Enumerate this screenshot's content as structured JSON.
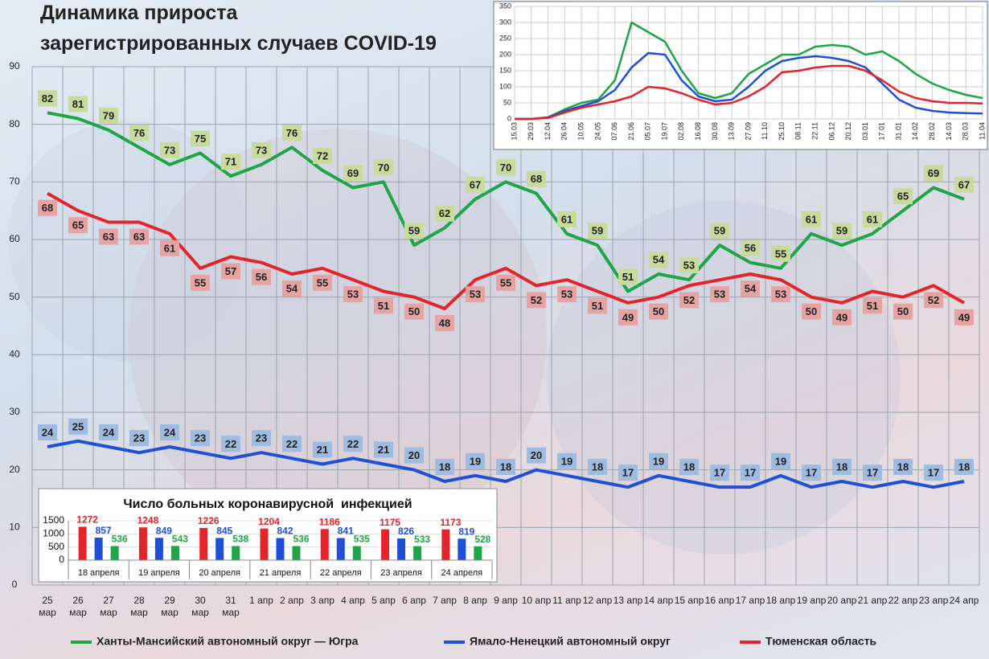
{
  "chart_data": [
    {
      "type": "line",
      "title": [
        "Динамика прироста",
        "зарегистрированных случаев COVID-19"
      ],
      "categories": [
        "25 мар",
        "26 мар",
        "27 мар",
        "28 мар",
        "29 мар",
        "30 мар",
        "31 мар",
        "1 апр",
        "2 апр",
        "3 апр",
        "4 апр",
        "5 апр",
        "6 апр",
        "7 апр",
        "8 апр",
        "9 апр",
        "10 апр",
        "11 апр",
        "12 апр",
        "13 апр",
        "14 апр",
        "15 апр",
        "16 апр",
        "17 апр",
        "18 апр",
        "19 апр",
        "20 апр",
        "21 апр",
        "22 апр",
        "23 апр",
        "24 апр"
      ],
      "series": [
        {
          "name": "Ханты-Мансийский автономный округ — Югра",
          "color": "#1fa547",
          "label_color": "#c7dc9c",
          "values": [
            82,
            81,
            79,
            76,
            73,
            75,
            71,
            73,
            76,
            72,
            69,
            70,
            59,
            62,
            67,
            70,
            68,
            61,
            59,
            51,
            54,
            53,
            59,
            56,
            55,
            61,
            59,
            61,
            65,
            69,
            67
          ]
        },
        {
          "name": "Ямало-Ненецкий автономный округ",
          "color": "#1f4fd6",
          "label_color": "#9fbbe0",
          "values": [
            24,
            25,
            24,
            23,
            24,
            23,
            22,
            23,
            22,
            21,
            22,
            21,
            20,
            18,
            19,
            18,
            20,
            19,
            18,
            17,
            19,
            18,
            17,
            17,
            19,
            17,
            18,
            17,
            18,
            17,
            18
          ]
        },
        {
          "name": "Тюменская область",
          "color": "#e3242b",
          "label_color": "#e6a3a3",
          "values": [
            68,
            65,
            63,
            63,
            61,
            55,
            57,
            56,
            54,
            55,
            53,
            51,
            50,
            48,
            53,
            55,
            52,
            53,
            51,
            49,
            50,
            52,
            53,
            54,
            53,
            50,
            49,
            51,
            50,
            52,
            49
          ]
        }
      ],
      "ylim": [
        0,
        90
      ],
      "yticks": [
        0,
        10,
        20,
        30,
        40,
        50,
        60,
        70,
        80,
        90
      ],
      "grid": true,
      "data_labels": true,
      "legend": "bottom"
    },
    {
      "type": "bar",
      "title": "Число больных коронавирусной  инфекцией",
      "categories": [
        "18 апреля",
        "19 апреля",
        "20 апреля",
        "21 апреля",
        "22 апреля",
        "23 апреля",
        "24 апреля"
      ],
      "series": [
        {
          "color": "#e3242b",
          "values": [
            1272,
            1248,
            1226,
            1204,
            1186,
            1175,
            1173
          ]
        },
        {
          "color": "#1f4fd6",
          "values": [
            857,
            849,
            845,
            842,
            841,
            826,
            819
          ]
        },
        {
          "color": "#1fa547",
          "values": [
            536,
            543,
            538,
            536,
            535,
            533,
            528
          ]
        }
      ],
      "ylim": [
        0,
        1500
      ],
      "yticks": [
        0,
        500,
        1000,
        1500
      ],
      "grid": true,
      "data_labels": true
    },
    {
      "type": "line",
      "categories": [
        "15.03",
        "29.03",
        "12.04",
        "26.04",
        "10.05",
        "24.05",
        "07.06",
        "21.06",
        "05.07",
        "19.07",
        "02.08",
        "16.08",
        "30.08",
        "13.09",
        "27.09",
        "11.10",
        "25.10",
        "08.11",
        "22.11",
        "06.12",
        "20.12",
        "03.01",
        "17.01",
        "31.01",
        "14.02",
        "28.02",
        "14.03",
        "28.03",
        "11.04"
      ],
      "series": [
        {
          "color": "#1fa547",
          "values": [
            0,
            0,
            5,
            30,
            50,
            60,
            120,
            300,
            270,
            240,
            150,
            80,
            65,
            80,
            140,
            170,
            200,
            200,
            225,
            230,
            225,
            200,
            210,
            180,
            140,
            110,
            90,
            75,
            65
          ]
        },
        {
          "color": "#1f4fd6",
          "values": [
            0,
            0,
            5,
            25,
            40,
            55,
            90,
            160,
            205,
            200,
            120,
            70,
            55,
            60,
            100,
            150,
            180,
            190,
            195,
            190,
            180,
            160,
            110,
            60,
            35,
            25,
            20,
            18,
            17
          ]
        },
        {
          "color": "#e3242b",
          "values": [
            0,
            0,
            3,
            20,
            35,
            45,
            55,
            70,
            100,
            95,
            80,
            60,
            45,
            50,
            70,
            100,
            145,
            150,
            160,
            165,
            165,
            150,
            120,
            85,
            65,
            55,
            50,
            50,
            48
          ]
        }
      ],
      "ylim": [
        0,
        350
      ],
      "yticks": [
        0,
        50,
        100,
        150,
        200,
        250,
        300,
        350
      ],
      "grid": true
    }
  ]
}
